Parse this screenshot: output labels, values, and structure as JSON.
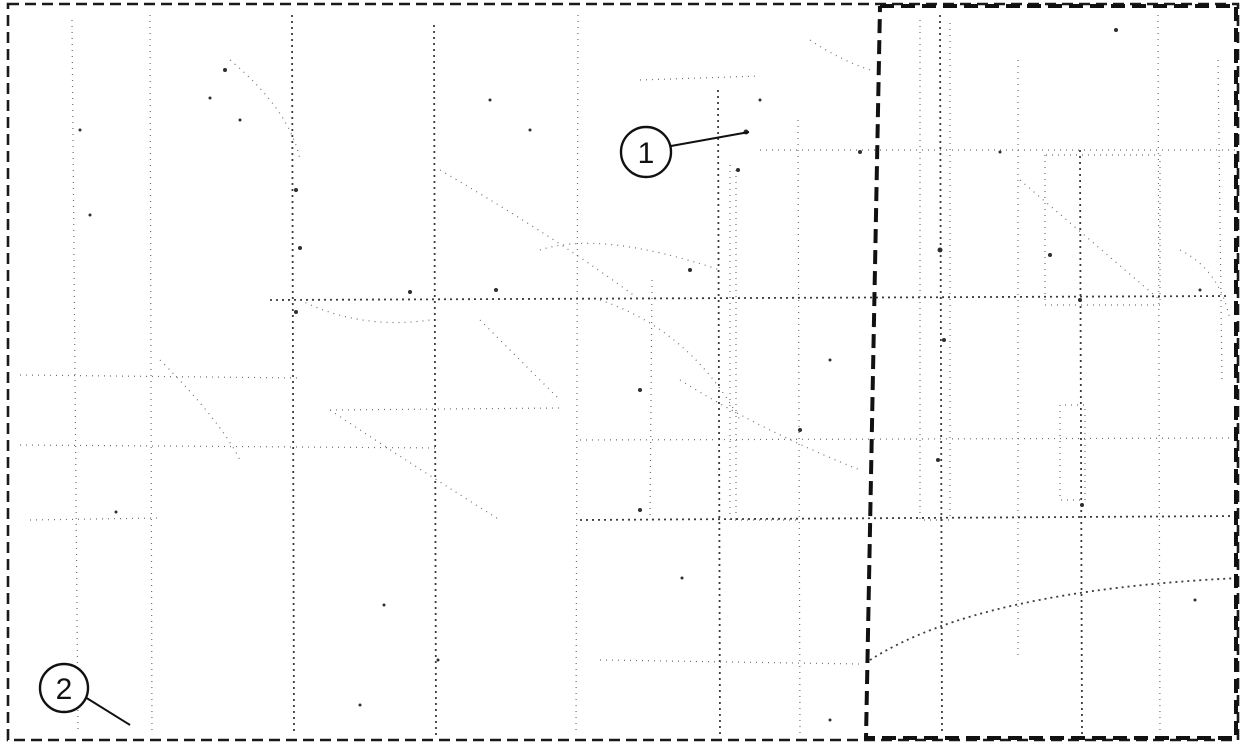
{
  "map": {
    "style": "sparse dotted line-art street map",
    "colors": {
      "background": "#ffffff",
      "boundary": "#111111",
      "roads": "#6f6f6f"
    },
    "callouts": [
      {
        "id": "1",
        "label": "1"
      },
      {
        "id": "2",
        "label": "2"
      }
    ]
  }
}
